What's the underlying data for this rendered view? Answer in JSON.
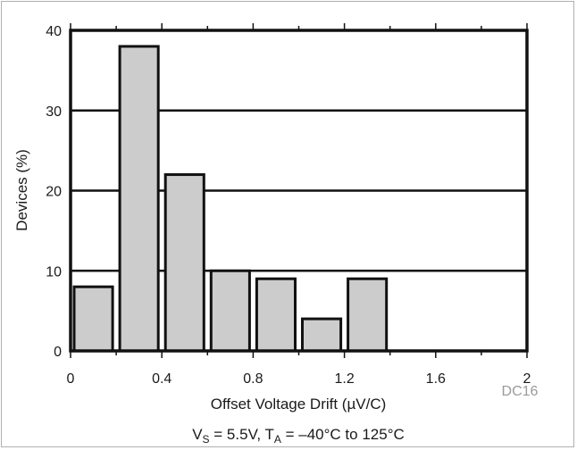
{
  "chart_data": {
    "type": "bar",
    "title": "",
    "xlabel": "Offset Voltage Drift (µV/C)",
    "ylabel": "Devices (%)",
    "xlim": [
      0,
      2
    ],
    "ylim": [
      0,
      40
    ],
    "x_ticks": [
      "0",
      "0.4",
      "0.8",
      "1.2",
      "1.6",
      "2"
    ],
    "y_ticks": [
      "0",
      "10",
      "20",
      "30",
      "40"
    ],
    "grid": "horizontal",
    "legend": "none",
    "bar_color": "#cccccc",
    "bars": [
      {
        "from": 0.0,
        "to": 0.2,
        "value": 8
      },
      {
        "from": 0.2,
        "to": 0.4,
        "value": 38
      },
      {
        "from": 0.4,
        "to": 0.6,
        "value": 22
      },
      {
        "from": 0.6,
        "to": 0.8,
        "value": 10
      },
      {
        "from": 0.8,
        "to": 1.0,
        "value": 9
      },
      {
        "from": 1.0,
        "to": 1.2,
        "value": 4
      },
      {
        "from": 1.2,
        "to": 1.4,
        "value": 9
      }
    ],
    "condition_note": {
      "v_main": "V",
      "v_sub": "S",
      "v_rest": " = 5.5V, T",
      "t_sub": "A",
      "t_rest": " = –40°C to 125°C"
    },
    "figure_code": "DC16"
  }
}
